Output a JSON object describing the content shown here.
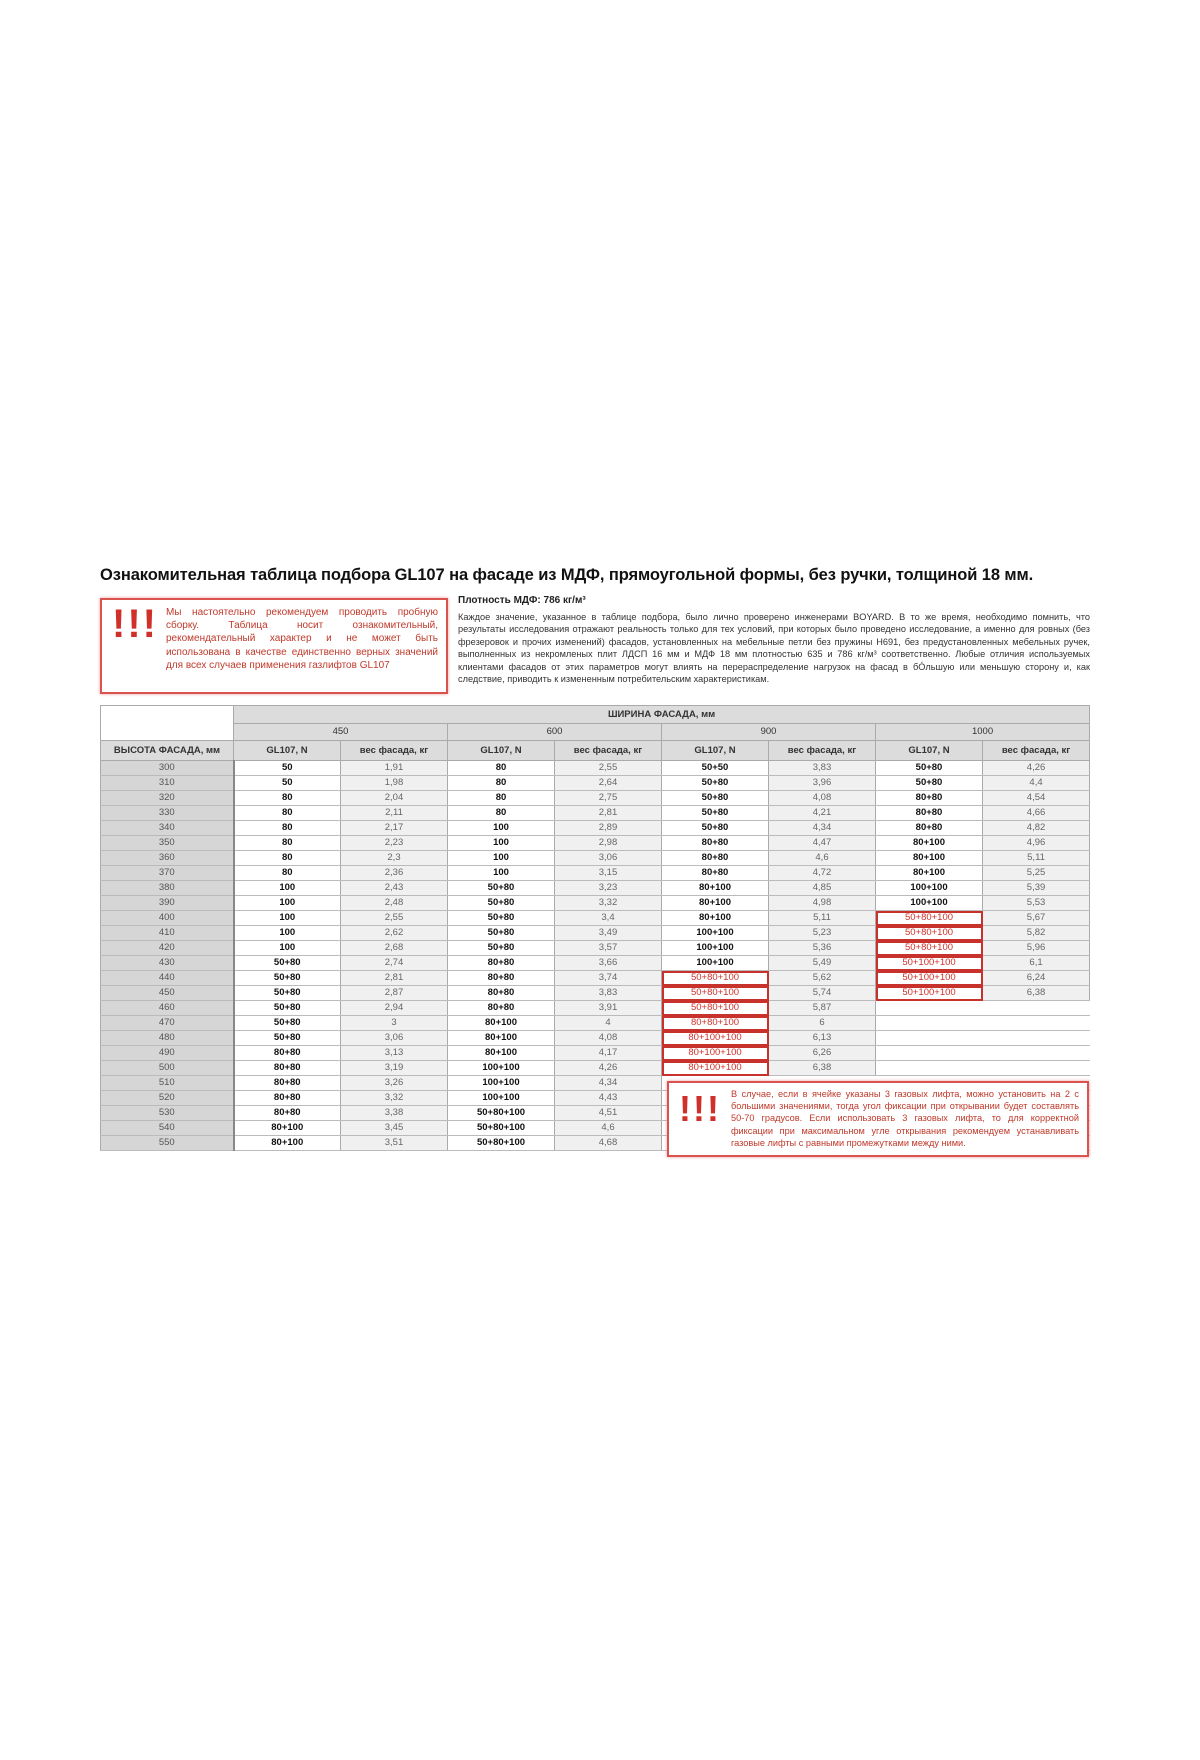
{
  "title": "Ознакомительная таблица подбора GL107 на фасаде из МДФ, прямоугольной формы, без ручки, толщиной 18 мм.",
  "warning_top": {
    "icon": "exclamation-marks",
    "symbol": "!!!",
    "text": "Мы настоятельно рекомендуем проводить пробную сборку. Таблица носит ознакомительный, рекомендательный характер и не может быть использована в качестве единственно верных значений для всех случаев применения газлифтов GL107"
  },
  "density": "Плотность МДФ: 786 кг/м³",
  "description": "Каждое значение, указанное в таблице подбора, было лично проверено инженерами BOYARD. В то же время, необходимо помнить, что результаты исследования отражают реальность только для тех условий, при которых было проведено исследование, а именно для ровных (без фрезеровок и прочих изменений) фасадов, установленных на мебельные петли без пружины H691, без предустановленных мебельных ручек, выполненных из некромленых плит ЛДСП 16 мм и МДФ 18 мм плотностью 635 и 786 кг/м³ соответственно. Любые отличия используемых клиентами фасадов от этих параметров могут влиять на перераспределение нагрузок на фасад в бÓльшую или меньшую сторону и, как следствие, приводить к измененным потребительским характеристикам.",
  "table": {
    "width_header": "ШИРИНА ФАСАДА, мм",
    "height_header": "ВЫСОТА ФАСАДА, мм",
    "widths": [
      "450",
      "600",
      "900",
      "1000"
    ],
    "sub_headers": [
      "GL107, N",
      "вес фасада, кг"
    ],
    "highlight_color": "#d0302a",
    "rows": [
      {
        "cells": [
          "300",
          "50",
          "1,91",
          "80",
          "2,55",
          "50+50",
          "3,83",
          "50+80",
          "4,26"
        ],
        "red": []
      },
      {
        "cells": [
          "310",
          "50",
          "1,98",
          "80",
          "2,64",
          "50+80",
          "3,96",
          "50+80",
          "4,4"
        ],
        "red": []
      },
      {
        "cells": [
          "320",
          "80",
          "2,04",
          "80",
          "2,75",
          "50+80",
          "4,08",
          "80+80",
          "4,54"
        ],
        "red": []
      },
      {
        "cells": [
          "330",
          "80",
          "2,11",
          "80",
          "2,81",
          "50+80",
          "4,21",
          "80+80",
          "4,66"
        ],
        "red": []
      },
      {
        "cells": [
          "340",
          "80",
          "2,17",
          "100",
          "2,89",
          "50+80",
          "4,34",
          "80+80",
          "4,82"
        ],
        "red": []
      },
      {
        "cells": [
          "350",
          "80",
          "2,23",
          "100",
          "2,98",
          "80+80",
          "4,47",
          "80+100",
          "4,96"
        ],
        "red": []
      },
      {
        "cells": [
          "360",
          "80",
          "2,3",
          "100",
          "3,06",
          "80+80",
          "4,6",
          "80+100",
          "5,11"
        ],
        "red": []
      },
      {
        "cells": [
          "370",
          "80",
          "2,36",
          "100",
          "3,15",
          "80+80",
          "4,72",
          "80+100",
          "5,25"
        ],
        "red": []
      },
      {
        "cells": [
          "380",
          "100",
          "2,43",
          "50+80",
          "3,23",
          "80+100",
          "4,85",
          "100+100",
          "5,39"
        ],
        "red": []
      },
      {
        "cells": [
          "390",
          "100",
          "2,48",
          "50+80",
          "3,32",
          "80+100",
          "4,98",
          "100+100",
          "5,53"
        ],
        "red": []
      },
      {
        "cells": [
          "400",
          "100",
          "2,55",
          "50+80",
          "3,4",
          "80+100",
          "5,11",
          "50+80+100",
          "5,67"
        ],
        "red": [
          7
        ]
      },
      {
        "cells": [
          "410",
          "100",
          "2,62",
          "50+80",
          "3,49",
          "100+100",
          "5,23",
          "50+80+100",
          "5,82"
        ],
        "red": [
          7
        ]
      },
      {
        "cells": [
          "420",
          "100",
          "2,68",
          "50+80",
          "3,57",
          "100+100",
          "5,36",
          "50+80+100",
          "5,96"
        ],
        "red": [
          7
        ]
      },
      {
        "cells": [
          "430",
          "50+80",
          "2,74",
          "80+80",
          "3,66",
          "100+100",
          "5,49",
          "50+100+100",
          "6,1"
        ],
        "red": [
          7
        ]
      },
      {
        "cells": [
          "440",
          "50+80",
          "2,81",
          "80+80",
          "3,74",
          "50+80+100",
          "5,62",
          "50+100+100",
          "6,24"
        ],
        "red": [
          5,
          7
        ]
      },
      {
        "cells": [
          "450",
          "50+80",
          "2,87",
          "80+80",
          "3,83",
          "50+80+100",
          "5,74",
          "50+100+100",
          "6,38"
        ],
        "red": [
          5,
          7
        ]
      },
      {
        "cells": [
          "460",
          "50+80",
          "2,94",
          "80+80",
          "3,91",
          "50+80+100",
          "5,87",
          "",
          ""
        ],
        "red": [
          5
        ]
      },
      {
        "cells": [
          "470",
          "50+80",
          "3",
          "80+100",
          "4",
          "80+80+100",
          "6",
          "",
          ""
        ],
        "red": [
          5
        ]
      },
      {
        "cells": [
          "480",
          "50+80",
          "3,06",
          "80+100",
          "4,08",
          "80+100+100",
          "6,13",
          "",
          ""
        ],
        "red": [
          5
        ]
      },
      {
        "cells": [
          "490",
          "80+80",
          "3,13",
          "80+100",
          "4,17",
          "80+100+100",
          "6,26",
          "",
          ""
        ],
        "red": [
          5
        ]
      },
      {
        "cells": [
          "500",
          "80+80",
          "3,19",
          "100+100",
          "4,26",
          "80+100+100",
          "6,38",
          "",
          ""
        ],
        "red": [
          5
        ]
      },
      {
        "cells": [
          "510",
          "80+80",
          "3,26",
          "100+100",
          "4,34",
          "",
          "",
          "",
          ""
        ],
        "red": []
      },
      {
        "cells": [
          "520",
          "80+80",
          "3,32",
          "100+100",
          "4,43",
          "",
          "",
          "",
          ""
        ],
        "red": []
      },
      {
        "cells": [
          "530",
          "80+80",
          "3,38",
          "50+80+100",
          "4,51",
          "",
          "",
          "",
          ""
        ],
        "red": []
      },
      {
        "cells": [
          "540",
          "80+100",
          "3,45",
          "50+80+100",
          "4,6",
          "",
          "",
          "",
          ""
        ],
        "red": []
      },
      {
        "cells": [
          "550",
          "80+100",
          "3,51",
          "50+80+100",
          "4,68",
          "",
          "",
          "",
          ""
        ],
        "red": []
      }
    ]
  },
  "warning_bottom": {
    "icon": "exclamation-marks",
    "symbol": "!!!",
    "text": "В случае, если в ячейке указаны 3 газовых лифта, можно установить на 2 с большими значениями, тогда угол фиксации при открывании будет составлять 50-70 градусов. Если использовать 3 газовых лифта, то для корректной фиксации при максимальном угле открывания рекомендуем устанавливать газовые лифты с равными промежутками между ними."
  }
}
